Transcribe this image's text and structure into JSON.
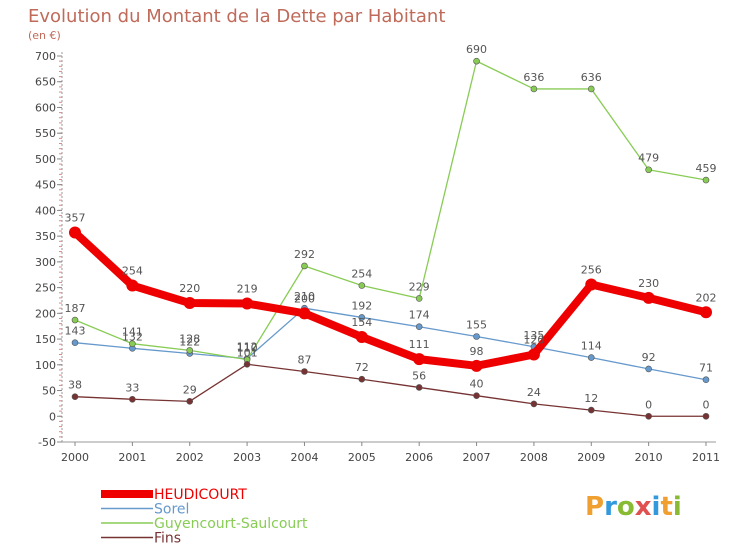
{
  "chart_data": {
    "type": "line",
    "title": "Evolution du Montant de la Dette par Habitant",
    "subtitle": "(en €)",
    "xlabel": "",
    "ylabel": "",
    "x": [
      "2000",
      "2001",
      "2002",
      "2003",
      "2004",
      "2005",
      "2006",
      "2007",
      "2008",
      "2009",
      "2010",
      "2011"
    ],
    "ylim": [
      -50,
      700
    ],
    "yticks": [
      -50,
      0,
      50,
      100,
      150,
      200,
      250,
      300,
      350,
      400,
      450,
      500,
      550,
      600,
      650,
      700
    ],
    "grid": false,
    "legend_position": "bottom-left",
    "series": [
      {
        "name": "HEUDICOURT",
        "color": "#ee0000",
        "values": [
          357,
          254,
          220,
          219,
          200,
          154,
          111,
          98,
          120,
          256,
          230,
          202
        ],
        "labels": [
          "357",
          "254",
          "220",
          "219",
          "200",
          "154",
          "111",
          "98",
          "120",
          "256",
          "230",
          "202"
        ]
      },
      {
        "name": "Sorel",
        "color": "#6699cc",
        "values": [
          143,
          132,
          122,
          112,
          210,
          192,
          174,
          155,
          135,
          114,
          92,
          71
        ],
        "labels": [
          "143",
          "132",
          "122",
          "112",
          "210",
          "192",
          "174",
          "155",
          "135",
          "114",
          "92",
          "71"
        ]
      },
      {
        "name": "Guyencourt-Saulcourt",
        "color": "#88cc55",
        "values": [
          187,
          141,
          128,
          110,
          292,
          254,
          229,
          690,
          636,
          636,
          479,
          459
        ],
        "labels": [
          "187",
          "141",
          "128",
          "110",
          "292",
          "254",
          "229",
          "690",
          "636",
          "636",
          "479",
          "459"
        ]
      },
      {
        "name": "Fins",
        "color": "#773333",
        "values": [
          38,
          33,
          29,
          101,
          87,
          72,
          56,
          40,
          24,
          12,
          0,
          0
        ],
        "labels": [
          "38",
          "33",
          "29",
          "101",
          "87",
          "72",
          "56",
          "40",
          "24",
          "12",
          "0",
          "0"
        ]
      }
    ]
  },
  "logo": {
    "text": "Proxiti"
  }
}
